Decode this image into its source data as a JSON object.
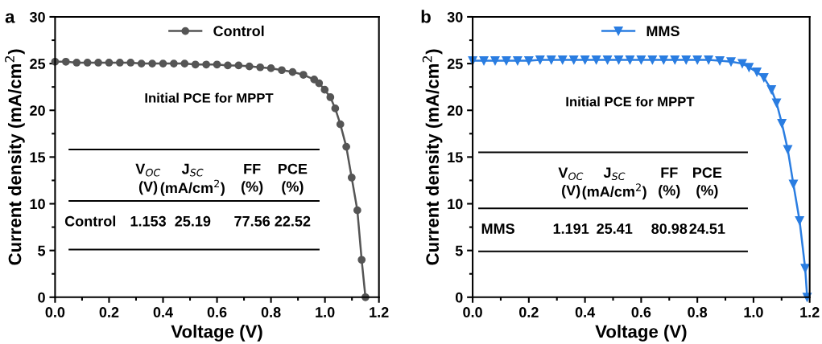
{
  "chart_data": [
    {
      "type": "line",
      "title": "a",
      "xlabel": "Voltage (V)",
      "ylabel": "Current density (mA/cm$^{2}$)",
      "xlim": [
        0,
        1.2
      ],
      "ylim": [
        0,
        30
      ],
      "xticks": [
        {
          "value": 0,
          "label": "0.0"
        },
        {
          "value": 0.2,
          "label": "0.2"
        },
        {
          "value": 0.4,
          "label": "0.4"
        },
        {
          "value": 0.6,
          "label": "0.6"
        },
        {
          "value": 0.8,
          "label": "0.8"
        },
        {
          "value": 1.0,
          "label": "1.0"
        },
        {
          "value": 1.2,
          "label": "1.2"
        }
      ],
      "yticks": [
        0,
        5,
        10,
        15,
        20,
        25,
        30
      ],
      "grid": false,
      "legend": "top",
      "marker": "circle",
      "line_style": "solid",
      "annotations": [
        "Initial PCE for MPPT",
        "V$_{OC}$",
        "J$_{SC}$",
        "FF",
        "PCE",
        "(V)",
        "(mA/cm$^{2}$)",
        "(%)",
        "(%)",
        "Control",
        "1.153",
        "25.19",
        "77.56",
        "22.52"
      ],
      "series": [
        {
          "name": "Control",
          "color": "#555555",
          "x": [
            0,
            0.04,
            0.08,
            0.12,
            0.16,
            0.2,
            0.24,
            0.28,
            0.32,
            0.36,
            0.4,
            0.44,
            0.48,
            0.52,
            0.56,
            0.6,
            0.64,
            0.68,
            0.72,
            0.76,
            0.8,
            0.84,
            0.88,
            0.92,
            0.96,
            0.978,
            0.999,
            1.02,
            1.038,
            1.057,
            1.079,
            1.099,
            1.12,
            1.136,
            1.15
          ],
          "values": [
            25.2,
            25.2,
            25.1,
            25.1,
            25.1,
            25.1,
            25.1,
            25.1,
            25.0,
            25.0,
            25.0,
            25.0,
            25.0,
            24.9,
            24.9,
            24.9,
            24.8,
            24.8,
            24.7,
            24.6,
            24.5,
            24.3,
            24.1,
            23.8,
            23.3,
            22.9,
            22.2,
            21.4,
            20.2,
            18.5,
            16.1,
            12.8,
            9.3,
            4.0,
            0
          ]
        }
      ]
    },
    {
      "type": "line",
      "title": "b",
      "xlabel": "Voltage (V)",
      "ylabel": "Current density (mA/cm$^{2}$)",
      "xlim": [
        0,
        1.2
      ],
      "ylim": [
        0,
        30
      ],
      "xticks": [
        {
          "value": 0,
          "label": "0.0"
        },
        {
          "value": 0.2,
          "label": "0.2"
        },
        {
          "value": 0.4,
          "label": "0.4"
        },
        {
          "value": 0.6,
          "label": "0.6"
        },
        {
          "value": 0.8,
          "label": "0.8"
        },
        {
          "value": 1.0,
          "label": "1.0"
        },
        {
          "value": 1.2,
          "label": "1.2"
        }
      ],
      "yticks": [
        0,
        5,
        10,
        15,
        20,
        25,
        30
      ],
      "grid": false,
      "legend": "top",
      "marker": "triangle",
      "line_style": "solid",
      "annotations": [
        "Initial PCE for MPPT",
        "V$_{OC}$",
        "J$_{SC}$",
        "FF",
        "PCE",
        "(V)",
        "(mA/cm$^{2}$)",
        "(%)",
        "(%)",
        "MMS",
        "1.191",
        "25.41",
        "80.98",
        "24.51"
      ],
      "series": [
        {
          "name": "MMS",
          "color": "#2a7de1",
          "x": [
            0,
            0.04,
            0.08,
            0.12,
            0.16,
            0.2,
            0.24,
            0.28,
            0.32,
            0.36,
            0.4,
            0.44,
            0.48,
            0.52,
            0.56,
            0.6,
            0.64,
            0.68,
            0.72,
            0.76,
            0.8,
            0.84,
            0.88,
            0.92,
            0.96,
            0.984,
            1.012,
            1.037,
            1.064,
            1.082,
            1.101,
            1.122,
            1.142,
            1.164,
            1.184,
            1.191
          ],
          "values": [
            25.3,
            25.3,
            25.3,
            25.3,
            25.3,
            25.3,
            25.4,
            25.4,
            25.4,
            25.4,
            25.4,
            25.4,
            25.4,
            25.4,
            25.4,
            25.4,
            25.4,
            25.4,
            25.4,
            25.4,
            25.4,
            25.4,
            25.3,
            25.2,
            25.0,
            24.6,
            24.1,
            23.5,
            22.2,
            20.8,
            18.6,
            15.8,
            12.1,
            8.2,
            3.1,
            0
          ]
        }
      ]
    }
  ]
}
